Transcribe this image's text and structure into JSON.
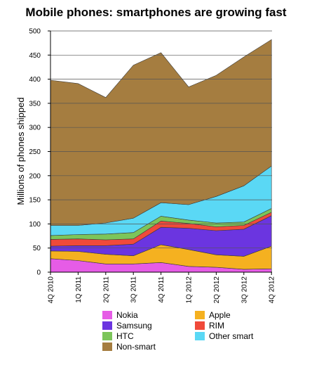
{
  "chart_data": {
    "type": "area",
    "stacked": true,
    "title": "Mobile phones: smartphones are growing fast",
    "xlabel": "",
    "ylabel": "Millions of phones shipped",
    "ylim": [
      0,
      500
    ],
    "yticks": [
      0,
      50,
      100,
      150,
      200,
      250,
      300,
      350,
      400,
      450,
      500
    ],
    "grid": true,
    "legend_position": "bottom",
    "categories": [
      "4Q 2010",
      "1Q 2011",
      "2Q 2011",
      "3Q 2011",
      "4Q 2011",
      "1Q 2012",
      "2Q 2012",
      "3Q 2012",
      "4Q 2012"
    ],
    "series": [
      {
        "name": "Nokia",
        "color": "#e65ce6",
        "values": [
          28,
          24,
          17,
          17,
          20,
          12,
          10,
          6,
          7
        ]
      },
      {
        "name": "Apple",
        "color": "#f5b120",
        "values": [
          16,
          19,
          20,
          17,
          37,
          35,
          26,
          27,
          47
        ]
      },
      {
        "name": "Samsung",
        "color": "#6b35e0",
        "values": [
          10,
          12,
          18,
          24,
          36,
          44,
          50,
          56,
          63
        ]
      },
      {
        "name": "RIM",
        "color": "#f04a3a",
        "values": [
          14,
          14,
          12,
          11,
          13,
          10,
          8,
          8,
          7
        ]
      },
      {
        "name": "HTC",
        "color": "#7cc55a",
        "values": [
          8,
          9,
          12,
          13,
          10,
          7,
          8,
          7,
          8
        ]
      },
      {
        "name": "Other smart",
        "color": "#5ad8f5",
        "values": [
          21,
          19,
          23,
          30,
          28,
          32,
          55,
          75,
          88
        ]
      },
      {
        "name": "Non-smart",
        "color": "#a57d40",
        "values": [
          301,
          294,
          260,
          317,
          311,
          244,
          251,
          267,
          262
        ]
      }
    ],
    "legend_order": [
      "Nokia",
      "Apple",
      "Samsung",
      "RIM",
      "HTC",
      "Other smart",
      "Non-smart"
    ]
  }
}
